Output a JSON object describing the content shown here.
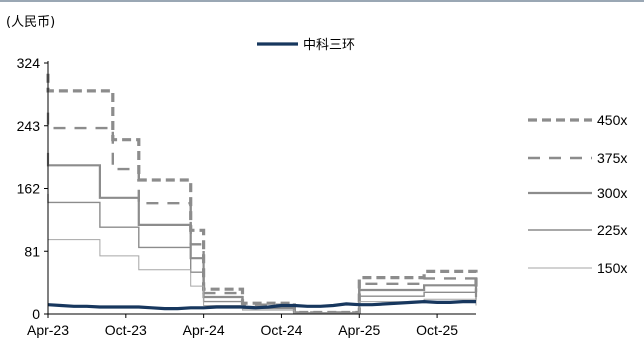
{
  "chart_data": {
    "type": "line",
    "unit_label": "(人民币)",
    "y_ticks": [
      "324",
      "243",
      "162",
      "81",
      "0"
    ],
    "ylim": [
      0,
      324
    ],
    "x_ticks": [
      "Apr-23",
      "Oct-23",
      "Apr-24",
      "Oct-24",
      "Apr-25",
      "Oct-25"
    ],
    "x_range": [
      "2023-04",
      "2026-01"
    ],
    "grid": false,
    "legend": [
      "top-center",
      "right"
    ],
    "series": [
      {
        "name": "中科三环",
        "color": "#17375e",
        "style": "solid-thick",
        "points": [
          [
            "2023-04",
            12
          ],
          [
            "2023-05",
            11
          ],
          [
            "2023-06",
            10
          ],
          [
            "2023-07",
            10
          ],
          [
            "2023-08",
            9
          ],
          [
            "2023-09",
            9
          ],
          [
            "2023-10",
            9
          ],
          [
            "2023-11",
            9
          ],
          [
            "2023-12",
            8
          ],
          [
            "2024-01",
            7
          ],
          [
            "2024-02",
            7
          ],
          [
            "2024-03",
            8
          ],
          [
            "2024-04",
            8
          ],
          [
            "2024-05",
            9
          ],
          [
            "2024-06",
            9
          ],
          [
            "2024-07",
            9
          ],
          [
            "2024-08",
            8
          ],
          [
            "2024-09",
            9
          ],
          [
            "2024-10",
            11
          ],
          [
            "2024-11",
            11
          ],
          [
            "2024-12",
            10
          ],
          [
            "2025-01",
            10
          ],
          [
            "2025-02",
            11
          ],
          [
            "2025-03",
            13
          ],
          [
            "2025-04",
            12
          ],
          [
            "2025-05",
            12
          ],
          [
            "2025-06",
            13
          ],
          [
            "2025-07",
            14
          ],
          [
            "2025-08",
            15
          ],
          [
            "2025-09",
            16
          ],
          [
            "2025-10",
            15
          ],
          [
            "2025-11",
            15
          ],
          [
            "2025-12",
            16
          ],
          [
            "2026-01",
            16
          ]
        ]
      },
      {
        "name": "450x",
        "color": "#8c8c8c",
        "style": "dash-thick",
        "steps": [
          [
            "2023-04",
            310
          ],
          [
            "2023-04",
            288
          ],
          [
            "2023-09",
            288
          ],
          [
            "2023-09",
            225
          ],
          [
            "2023-11",
            225
          ],
          [
            "2023-11",
            173
          ],
          [
            "2024-03",
            173
          ],
          [
            "2024-03",
            108
          ],
          [
            "2024-04",
            108
          ],
          [
            "2024-04",
            32
          ],
          [
            "2024-07",
            32
          ],
          [
            "2024-07",
            14
          ],
          [
            "2024-11",
            14
          ],
          [
            "2024-11",
            2
          ],
          [
            "2025-04",
            2
          ],
          [
            "2025-04",
            47
          ],
          [
            "2025-09",
            47
          ],
          [
            "2025-09",
            55
          ],
          [
            "2026-01",
            55
          ],
          [
            "2026-01",
            34
          ]
        ]
      },
      {
        "name": "375x",
        "color": "#8c8c8c",
        "style": "dash-long",
        "steps": [
          [
            "2023-04",
            260
          ],
          [
            "2023-04",
            240
          ],
          [
            "2023-09",
            240
          ],
          [
            "2023-09",
            187
          ],
          [
            "2023-11",
            187
          ],
          [
            "2023-11",
            143
          ],
          [
            "2024-03",
            143
          ],
          [
            "2024-03",
            90
          ],
          [
            "2024-04",
            90
          ],
          [
            "2024-04",
            27
          ],
          [
            "2024-07",
            27
          ],
          [
            "2024-07",
            12
          ],
          [
            "2024-11",
            12
          ],
          [
            "2024-11",
            2
          ],
          [
            "2025-04",
            2
          ],
          [
            "2025-04",
            39
          ],
          [
            "2025-09",
            39
          ],
          [
            "2025-09",
            46
          ],
          [
            "2026-01",
            46
          ],
          [
            "2026-01",
            28
          ]
        ]
      },
      {
        "name": "300x",
        "color": "#8c8c8c",
        "style": "solid-mid",
        "steps": [
          [
            "2023-04",
            208
          ],
          [
            "2023-04",
            192
          ],
          [
            "2023-08",
            192
          ],
          [
            "2023-08",
            150
          ],
          [
            "2023-11",
            150
          ],
          [
            "2023-11",
            115
          ],
          [
            "2024-03",
            115
          ],
          [
            "2024-03",
            72
          ],
          [
            "2024-04",
            72
          ],
          [
            "2024-04",
            22
          ],
          [
            "2024-07",
            22
          ],
          [
            "2024-07",
            9
          ],
          [
            "2024-11",
            9
          ],
          [
            "2024-11",
            1
          ],
          [
            "2025-04",
            1
          ],
          [
            "2025-04",
            31
          ],
          [
            "2025-09",
            31
          ],
          [
            "2025-09",
            37
          ],
          [
            "2026-01",
            37
          ],
          [
            "2026-01",
            22
          ]
        ]
      },
      {
        "name": "225x",
        "color": "#8c8c8c",
        "style": "solid-thin",
        "steps": [
          [
            "2023-04",
            155
          ],
          [
            "2023-04",
            144
          ],
          [
            "2023-08",
            144
          ],
          [
            "2023-08",
            112
          ],
          [
            "2023-11",
            112
          ],
          [
            "2023-11",
            86
          ],
          [
            "2024-03",
            86
          ],
          [
            "2024-03",
            54
          ],
          [
            "2024-04",
            54
          ],
          [
            "2024-04",
            16
          ],
          [
            "2024-07",
            16
          ],
          [
            "2024-07",
            7
          ],
          [
            "2024-11",
            7
          ],
          [
            "2024-11",
            1
          ],
          [
            "2025-04",
            1
          ],
          [
            "2025-04",
            23
          ],
          [
            "2025-09",
            23
          ],
          [
            "2025-09",
            28
          ],
          [
            "2026-01",
            28
          ],
          [
            "2026-01",
            17
          ]
        ]
      },
      {
        "name": "150x",
        "color": "#a6a6a6",
        "style": "solid-hair",
        "steps": [
          [
            "2023-04",
            103
          ],
          [
            "2023-04",
            96
          ],
          [
            "2023-08",
            96
          ],
          [
            "2023-08",
            75
          ],
          [
            "2023-11",
            75
          ],
          [
            "2023-11",
            57
          ],
          [
            "2024-03",
            57
          ],
          [
            "2024-03",
            36
          ],
          [
            "2024-04",
            36
          ],
          [
            "2024-04",
            11
          ],
          [
            "2024-07",
            11
          ],
          [
            "2024-07",
            5
          ],
          [
            "2024-11",
            5
          ],
          [
            "2024-11",
            1
          ],
          [
            "2025-04",
            1
          ],
          [
            "2025-04",
            16
          ],
          [
            "2025-09",
            16
          ],
          [
            "2025-09",
            19
          ],
          [
            "2026-01",
            19
          ],
          [
            "2026-01",
            11
          ]
        ]
      }
    ]
  }
}
